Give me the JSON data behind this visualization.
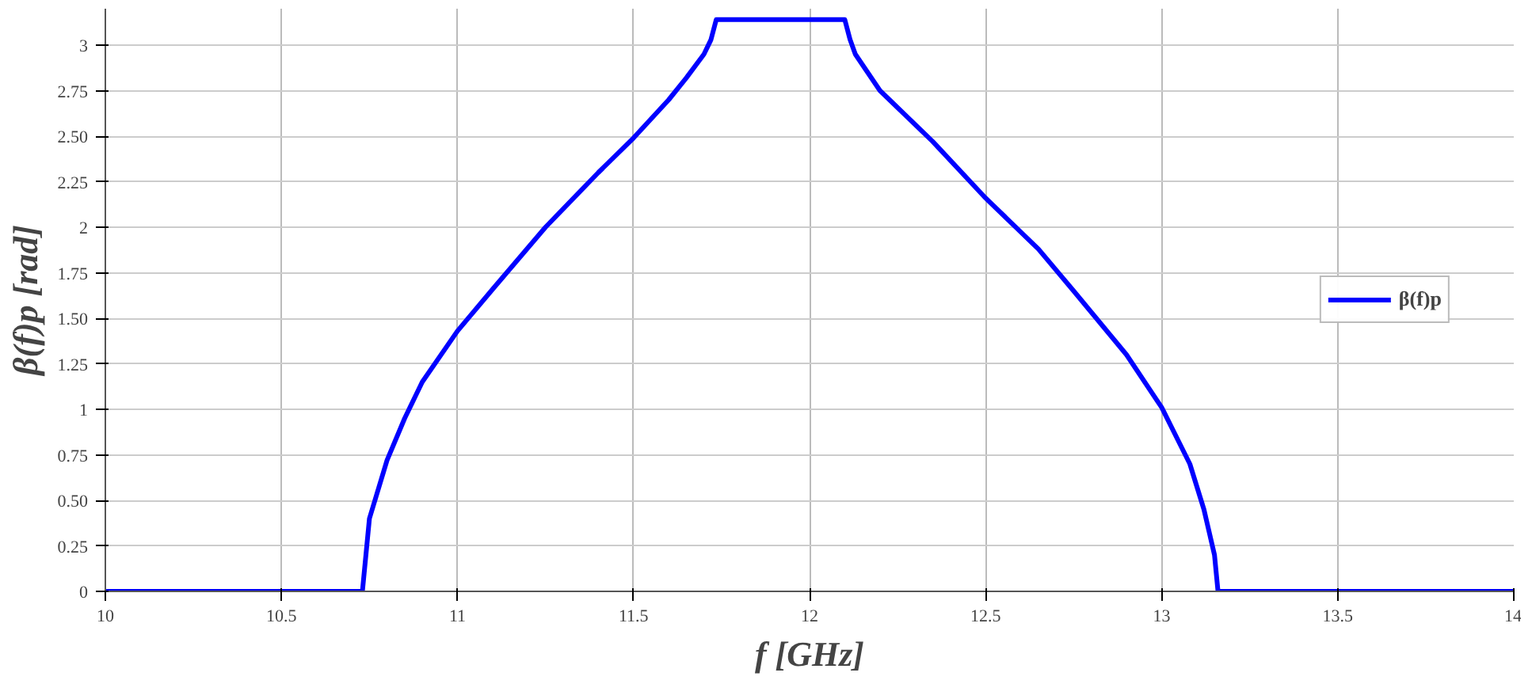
{
  "chart_data": {
    "type": "line",
    "xlabel": "f [GHz]",
    "ylabel": "β(f)p [rad]",
    "x": [
      10,
      10.5,
      10.73,
      10.74,
      10.75,
      10.8,
      10.85,
      10.9,
      11,
      11.1,
      11.25,
      11.4,
      11.5,
      11.6,
      11.65,
      11.7,
      11.72,
      11.735,
      11.9,
      12.1,
      12.115,
      12.13,
      12.2,
      12.35,
      12.5,
      12.65,
      12.75,
      12.9,
      13,
      13.08,
      13.12,
      13.15,
      13.16,
      13.5,
      14
    ],
    "series": [
      {
        "name": "β(f)p",
        "color": "#0000ff",
        "values": [
          0,
          0,
          0,
          0.2,
          0.4,
          0.72,
          0.95,
          1.15,
          1.43,
          1.66,
          2.0,
          2.3,
          2.49,
          2.7,
          2.82,
          2.95,
          3.03,
          3.14,
          3.14,
          3.14,
          3.03,
          2.95,
          2.75,
          2.47,
          2.16,
          1.88,
          1.65,
          1.3,
          1.01,
          0.7,
          0.45,
          0.2,
          0,
          0,
          0
        ]
      }
    ],
    "xlim": [
      10,
      14
    ],
    "ylim": [
      0,
      3.2
    ],
    "xticks": [
      10,
      10.5,
      11,
      11.5,
      12,
      12.5,
      13,
      13.5,
      14
    ],
    "yticks": [
      0,
      0.25,
      {
        "value": 0.5,
        "label": "0.50"
      },
      0.75,
      1,
      1.25,
      {
        "value": 1.5,
        "label": "1.50"
      },
      1.75,
      2,
      2.25,
      {
        "value": 2.5,
        "label": "2.50"
      },
      2.75,
      3
    ],
    "grid": true,
    "legend": "right",
    "line_style": "solid",
    "marker": "none"
  }
}
